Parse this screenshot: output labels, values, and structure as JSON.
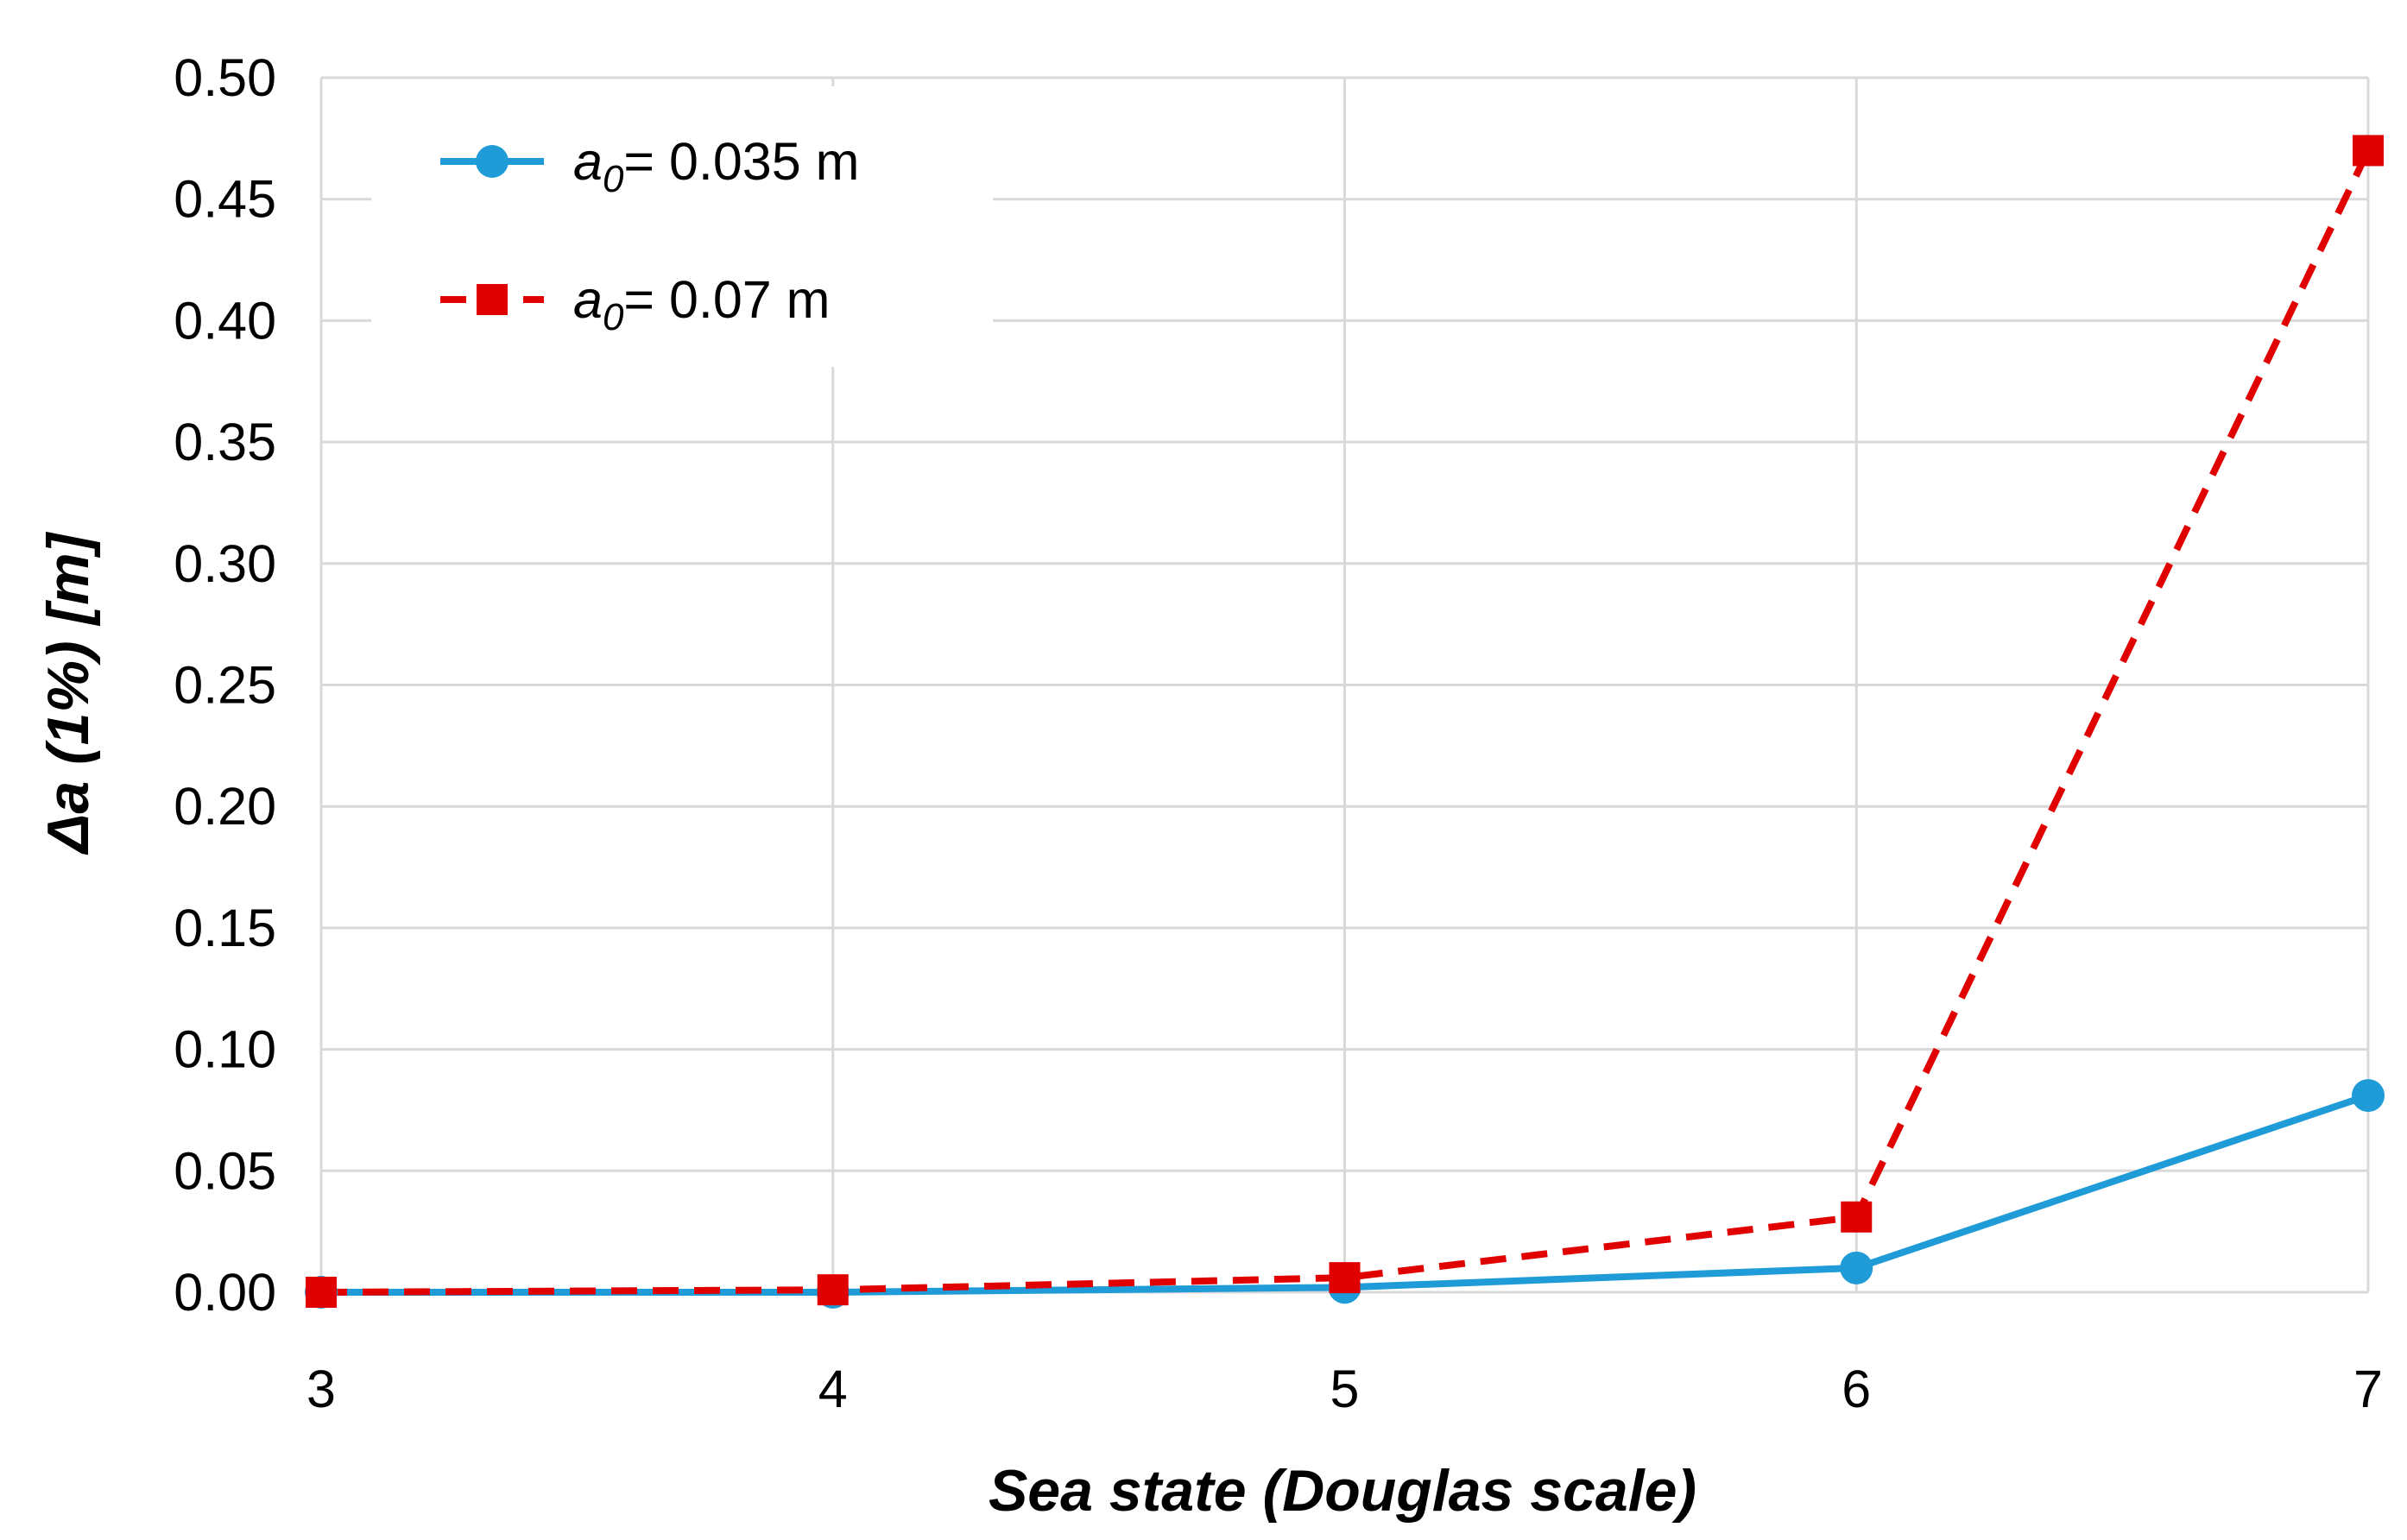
{
  "chart_data": {
    "type": "line",
    "xlabel": "Sea state (Douglas scale)",
    "ylabel": "Δa (1%) [m]",
    "x": [
      3,
      4,
      5,
      6,
      7
    ],
    "xlim": [
      3,
      7
    ],
    "ylim": [
      0,
      0.5
    ],
    "x_ticks": [
      "3",
      "4",
      "5",
      "6",
      "7"
    ],
    "y_ticks": [
      "0.00",
      "0.05",
      "0.10",
      "0.15",
      "0.20",
      "0.25",
      "0.30",
      "0.35",
      "0.40",
      "0.45",
      "0.50"
    ],
    "grid": true,
    "legend_position": "top-left",
    "series": [
      {
        "name": "a0= 0.035 m",
        "legend_symbol": "a",
        "legend_subscript": "0",
        "legend_suffix": "= 0.035 m",
        "values": [
          0.0,
          0.0,
          0.002,
          0.01,
          0.081
        ],
        "color": "#1f9bd7",
        "marker": "circle",
        "line_style": "solid"
      },
      {
        "name": "a0= 0.07 m",
        "legend_symbol": "a",
        "legend_subscript": "0",
        "legend_suffix": "= 0.07 m",
        "values": [
          0.0,
          0.001,
          0.006,
          0.031,
          0.47
        ],
        "color": "#e00000",
        "marker": "square",
        "line_style": "dashed"
      }
    ]
  }
}
